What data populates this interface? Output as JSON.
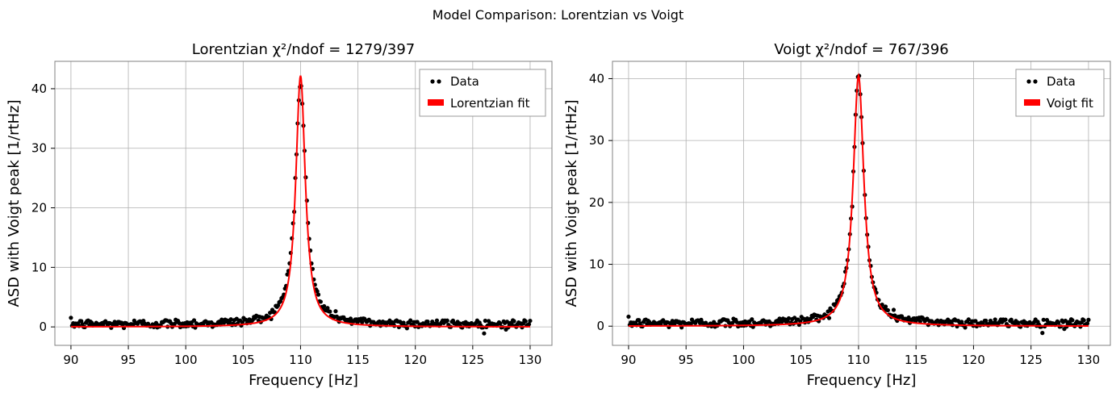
{
  "figure": {
    "suptitle": "Model Comparison: Lorentzian vs Voigt"
  },
  "chart_data": [
    {
      "type": "scatter",
      "title": "Lorentzian  χ²/ndof = 1279/397",
      "xlabel": "Frequency [Hz]",
      "ylabel": "ASD with Voigt peak [1/rtHz]",
      "xlim": [
        88.6,
        131.9
      ],
      "ylim": [
        -3.1,
        44.6
      ],
      "x_ticks": [
        90,
        95,
        100,
        105,
        110,
        115,
        120,
        125,
        130
      ],
      "y_ticks": [
        0,
        10,
        20,
        30,
        40
      ],
      "grid": true,
      "legend_position": "top-right",
      "legend": [
        "Data",
        "Lorentzian fit"
      ],
      "series": [
        {
          "name": "Data",
          "kind": "points",
          "color": "#000000",
          "x_range": [
            90,
            130
          ],
          "count": 400,
          "peak_center": 110.0,
          "peak_amplitude": 40.2,
          "peak_hwhm": 0.56,
          "baseline": 0.45,
          "noise_sd": 0.38
        },
        {
          "name": "Lorentzian fit",
          "kind": "line",
          "color": "#ff0000",
          "x_range": [
            90,
            130
          ],
          "center": 110.0,
          "amplitude": 42.2,
          "hwhm": 0.5,
          "baseline": 0.0
        }
      ]
    },
    {
      "type": "scatter",
      "title": "Voigt  χ²/ndof = 767/396",
      "xlabel": "Frequency [Hz]",
      "ylabel": "ASD with Voigt peak [1/rtHz]",
      "xlim": [
        88.6,
        131.9
      ],
      "ylim": [
        -3.1,
        42.8
      ],
      "x_ticks": [
        90,
        95,
        100,
        105,
        110,
        115,
        120,
        125,
        130
      ],
      "y_ticks": [
        0,
        10,
        20,
        30,
        40
      ],
      "grid": true,
      "legend_position": "top-right",
      "legend": [
        "Data",
        "Voigt fit"
      ],
      "series": [
        {
          "name": "Data",
          "kind": "points",
          "color": "#000000",
          "x_range": [
            90,
            130
          ],
          "count": 400,
          "peak_center": 110.0,
          "peak_amplitude": 40.2,
          "peak_hwhm": 0.56,
          "baseline": 0.45,
          "noise_sd": 0.38
        },
        {
          "name": "Voigt fit",
          "kind": "line",
          "color": "#ff0000",
          "x_range": [
            90,
            130
          ],
          "center": 110.0,
          "amplitude": 40.5,
          "hwhm": 0.56,
          "baseline": 0.0
        }
      ]
    }
  ]
}
